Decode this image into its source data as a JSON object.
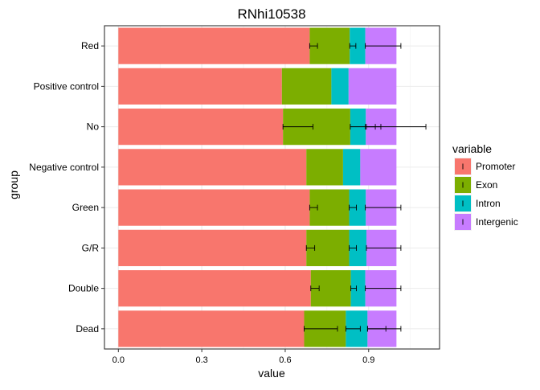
{
  "chart_data": {
    "type": "bar",
    "orientation": "horizontal",
    "stacked": true,
    "title": "RNhi10538",
    "xlabel": "value",
    "ylabel": "group",
    "xlim": [
      -0.05,
      1.155
    ],
    "xticks": [
      0.0,
      0.3,
      0.6,
      0.9
    ],
    "xtick_labels": [
      "0.0",
      "0.3",
      "0.6",
      "0.9"
    ],
    "grid": true,
    "legend": {
      "title": "variable",
      "position": "right"
    },
    "categories": [
      "Red",
      "Positive control",
      "No",
      "Negative control",
      "Green",
      "G/R",
      "Double",
      "Dead"
    ],
    "series": [
      {
        "name": "Promoter",
        "color": "#F8766D",
        "values": [
          0.688,
          0.588,
          0.592,
          0.676,
          0.688,
          0.676,
          0.692,
          0.668
        ],
        "error": [
          null,
          null,
          [
            0.592,
            0.7
          ],
          null,
          null,
          null,
          null,
          [
            0.668,
            0.788
          ]
        ]
      },
      {
        "name": "Exon",
        "color": "#7CAE00",
        "values": [
          0.144,
          0.178,
          0.242,
          0.132,
          0.142,
          0.154,
          0.144,
          0.15
        ],
        "error": [
          [
            0.688,
            0.716
          ],
          null,
          [
            0.834,
            0.944
          ],
          null,
          [
            0.688,
            0.716
          ],
          [
            0.676,
            0.706
          ],
          [
            0.692,
            0.722
          ],
          [
            0.818,
            0.87
          ]
        ]
      },
      {
        "name": "Intron",
        "color": "#00BFC4",
        "values": [
          0.056,
          0.062,
          0.056,
          0.062,
          0.06,
          0.062,
          0.052,
          0.078
        ],
        "error": [
          [
            0.832,
            0.854
          ],
          null,
          [
            0.888,
            0.924
          ],
          null,
          [
            0.83,
            0.856
          ],
          [
            0.83,
            0.856
          ],
          [
            0.836,
            0.856
          ],
          [
            0.896,
            0.962
          ]
        ]
      },
      {
        "name": "Intergenic",
        "color": "#C77CFF",
        "values": [
          0.112,
          0.172,
          0.11,
          0.13,
          0.11,
          0.108,
          0.112,
          0.104
        ],
        "error": [
          [
            0.888,
            1.016
          ],
          null,
          [
            0.892,
            1.106
          ],
          null,
          [
            0.888,
            1.016
          ],
          [
            0.892,
            1.016
          ],
          [
            0.888,
            1.016
          ],
          [
            0.896,
            1.016
          ]
        ]
      }
    ]
  }
}
